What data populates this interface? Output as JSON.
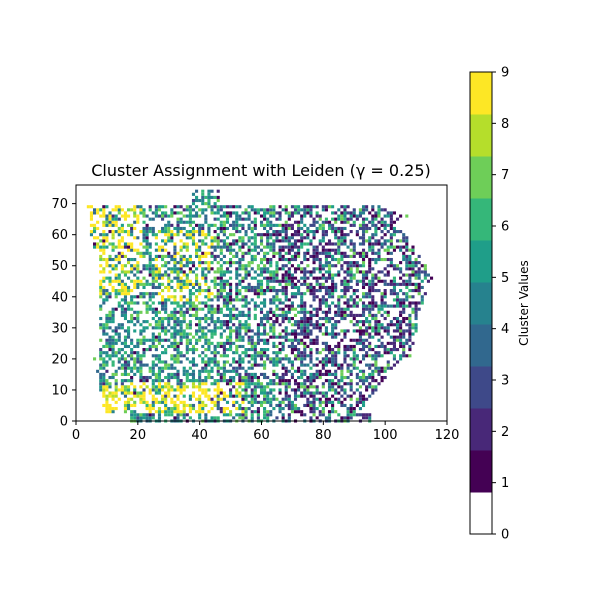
{
  "chart_data": {
    "type": "heatmap",
    "title": "Cluster Assignment with Leiden (γ = 0.25)",
    "xlabel": "",
    "ylabel": "",
    "xlim": [
      0,
      120
    ],
    "ylim": [
      0,
      76
    ],
    "x_ticks": [
      "0",
      "20",
      "40",
      "60",
      "80",
      "100",
      "120"
    ],
    "y_ticks": [
      "0",
      "10",
      "20",
      "30",
      "40",
      "50",
      "60",
      "70"
    ],
    "grid": false,
    "colorbar": {
      "label": "Cluster Values",
      "range": [
        0,
        9
      ],
      "ticks": [
        "0",
        "1",
        "2",
        "3",
        "4",
        "5",
        "6",
        "7",
        "8",
        "9"
      ],
      "colors": [
        "#ffffff",
        "#440154",
        "#482878",
        "#3e4989",
        "#31688e",
        "#26828e",
        "#1f9e89",
        "#35b779",
        "#6ece58",
        "#b5de2b",
        "#fde725"
      ]
    },
    "grid_size": [
      122,
      74
    ],
    "cell_values": "discrete cluster labels 0-9 on a ~122 x 74 spot grid; yellow (8-9) cluster at left and bottom-left band, purple/dark (1-3) dominant on right half, teal/green (4-7) interspersed"
  }
}
